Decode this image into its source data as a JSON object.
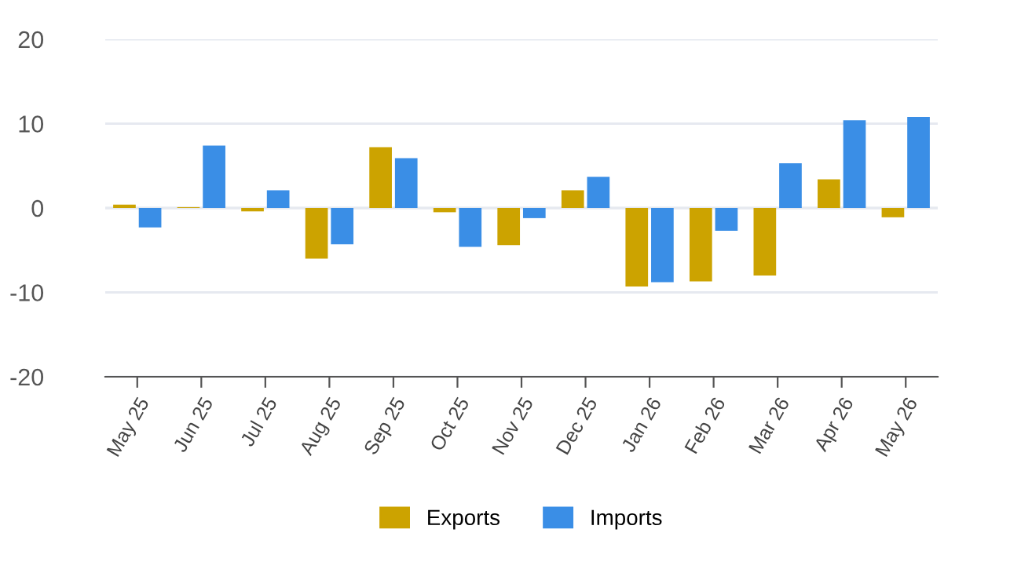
{
  "chart_data": {
    "type": "bar",
    "categories": [
      "May 25",
      "Jun 25",
      "Jul 25",
      "Aug 25",
      "Sep 25",
      "Oct 25",
      "Nov 25",
      "Dec 25",
      "Jan 26",
      "Feb 26",
      "Mar 26",
      "Apr 26",
      "May 26"
    ],
    "series": [
      {
        "name": "Exports",
        "color": "#cca300",
        "values": [
          0.4,
          0.1,
          -0.4,
          -6.0,
          7.2,
          -0.5,
          -4.4,
          2.1,
          -9.3,
          -8.7,
          -8.0,
          3.4,
          -1.1
        ]
      },
      {
        "name": "Imports",
        "color": "#3a8ee6",
        "values": [
          -2.3,
          7.4,
          2.1,
          -4.3,
          5.9,
          -4.6,
          -1.2,
          3.7,
          -8.8,
          -2.7,
          5.3,
          10.4,
          10.8
        ]
      }
    ],
    "ylim": [
      -20,
      20
    ],
    "yticks": [
      -20,
      -10,
      0,
      10,
      20
    ],
    "grid": "y",
    "legend": "bottom"
  }
}
